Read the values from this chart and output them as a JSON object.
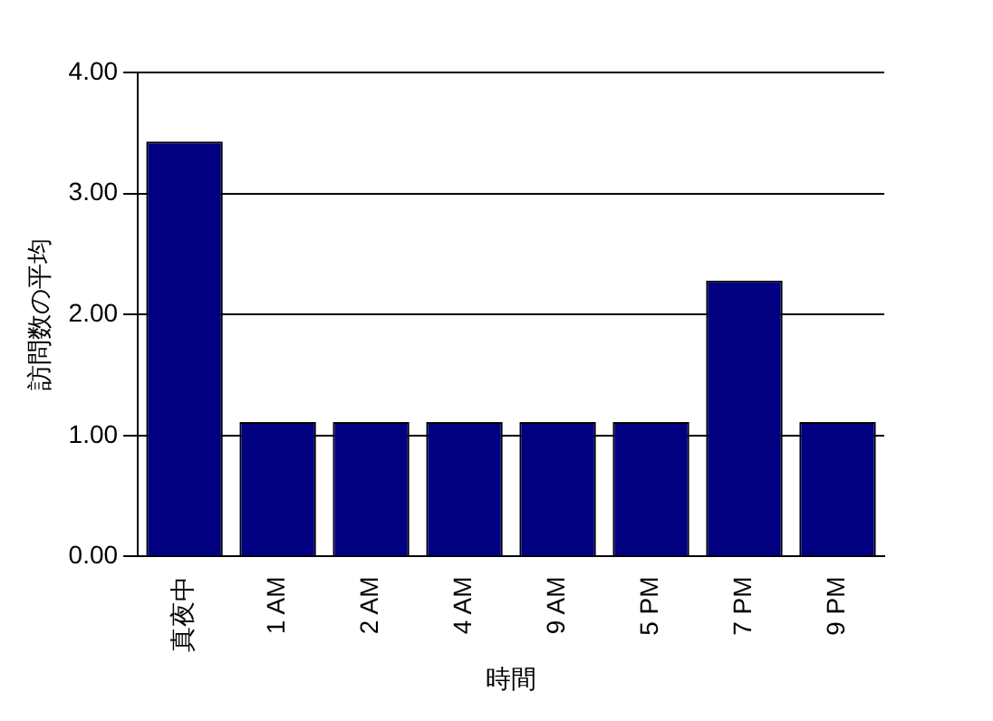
{
  "chart_data": {
    "type": "bar",
    "xlabel": "時間",
    "ylabel": "訪問数の平均",
    "categories": [
      "真夜中",
      "1 AM",
      "2 AM",
      "4 AM",
      "9 AM",
      "5 PM",
      "7 PM",
      "9 PM"
    ],
    "values": [
      3.43,
      1.11,
      1.11,
      1.11,
      1.11,
      1.11,
      2.28,
      1.11
    ],
    "color": "#000080",
    "ylim": [
      0,
      4
    ],
    "yticks": [
      {
        "value": 0,
        "label": "0.00"
      },
      {
        "value": 1,
        "label": "1.00"
      },
      {
        "value": 2,
        "label": "2.00"
      },
      {
        "value": 3,
        "label": "3.00"
      },
      {
        "value": 4,
        "label": "4.00"
      }
    ],
    "grid": "y"
  }
}
